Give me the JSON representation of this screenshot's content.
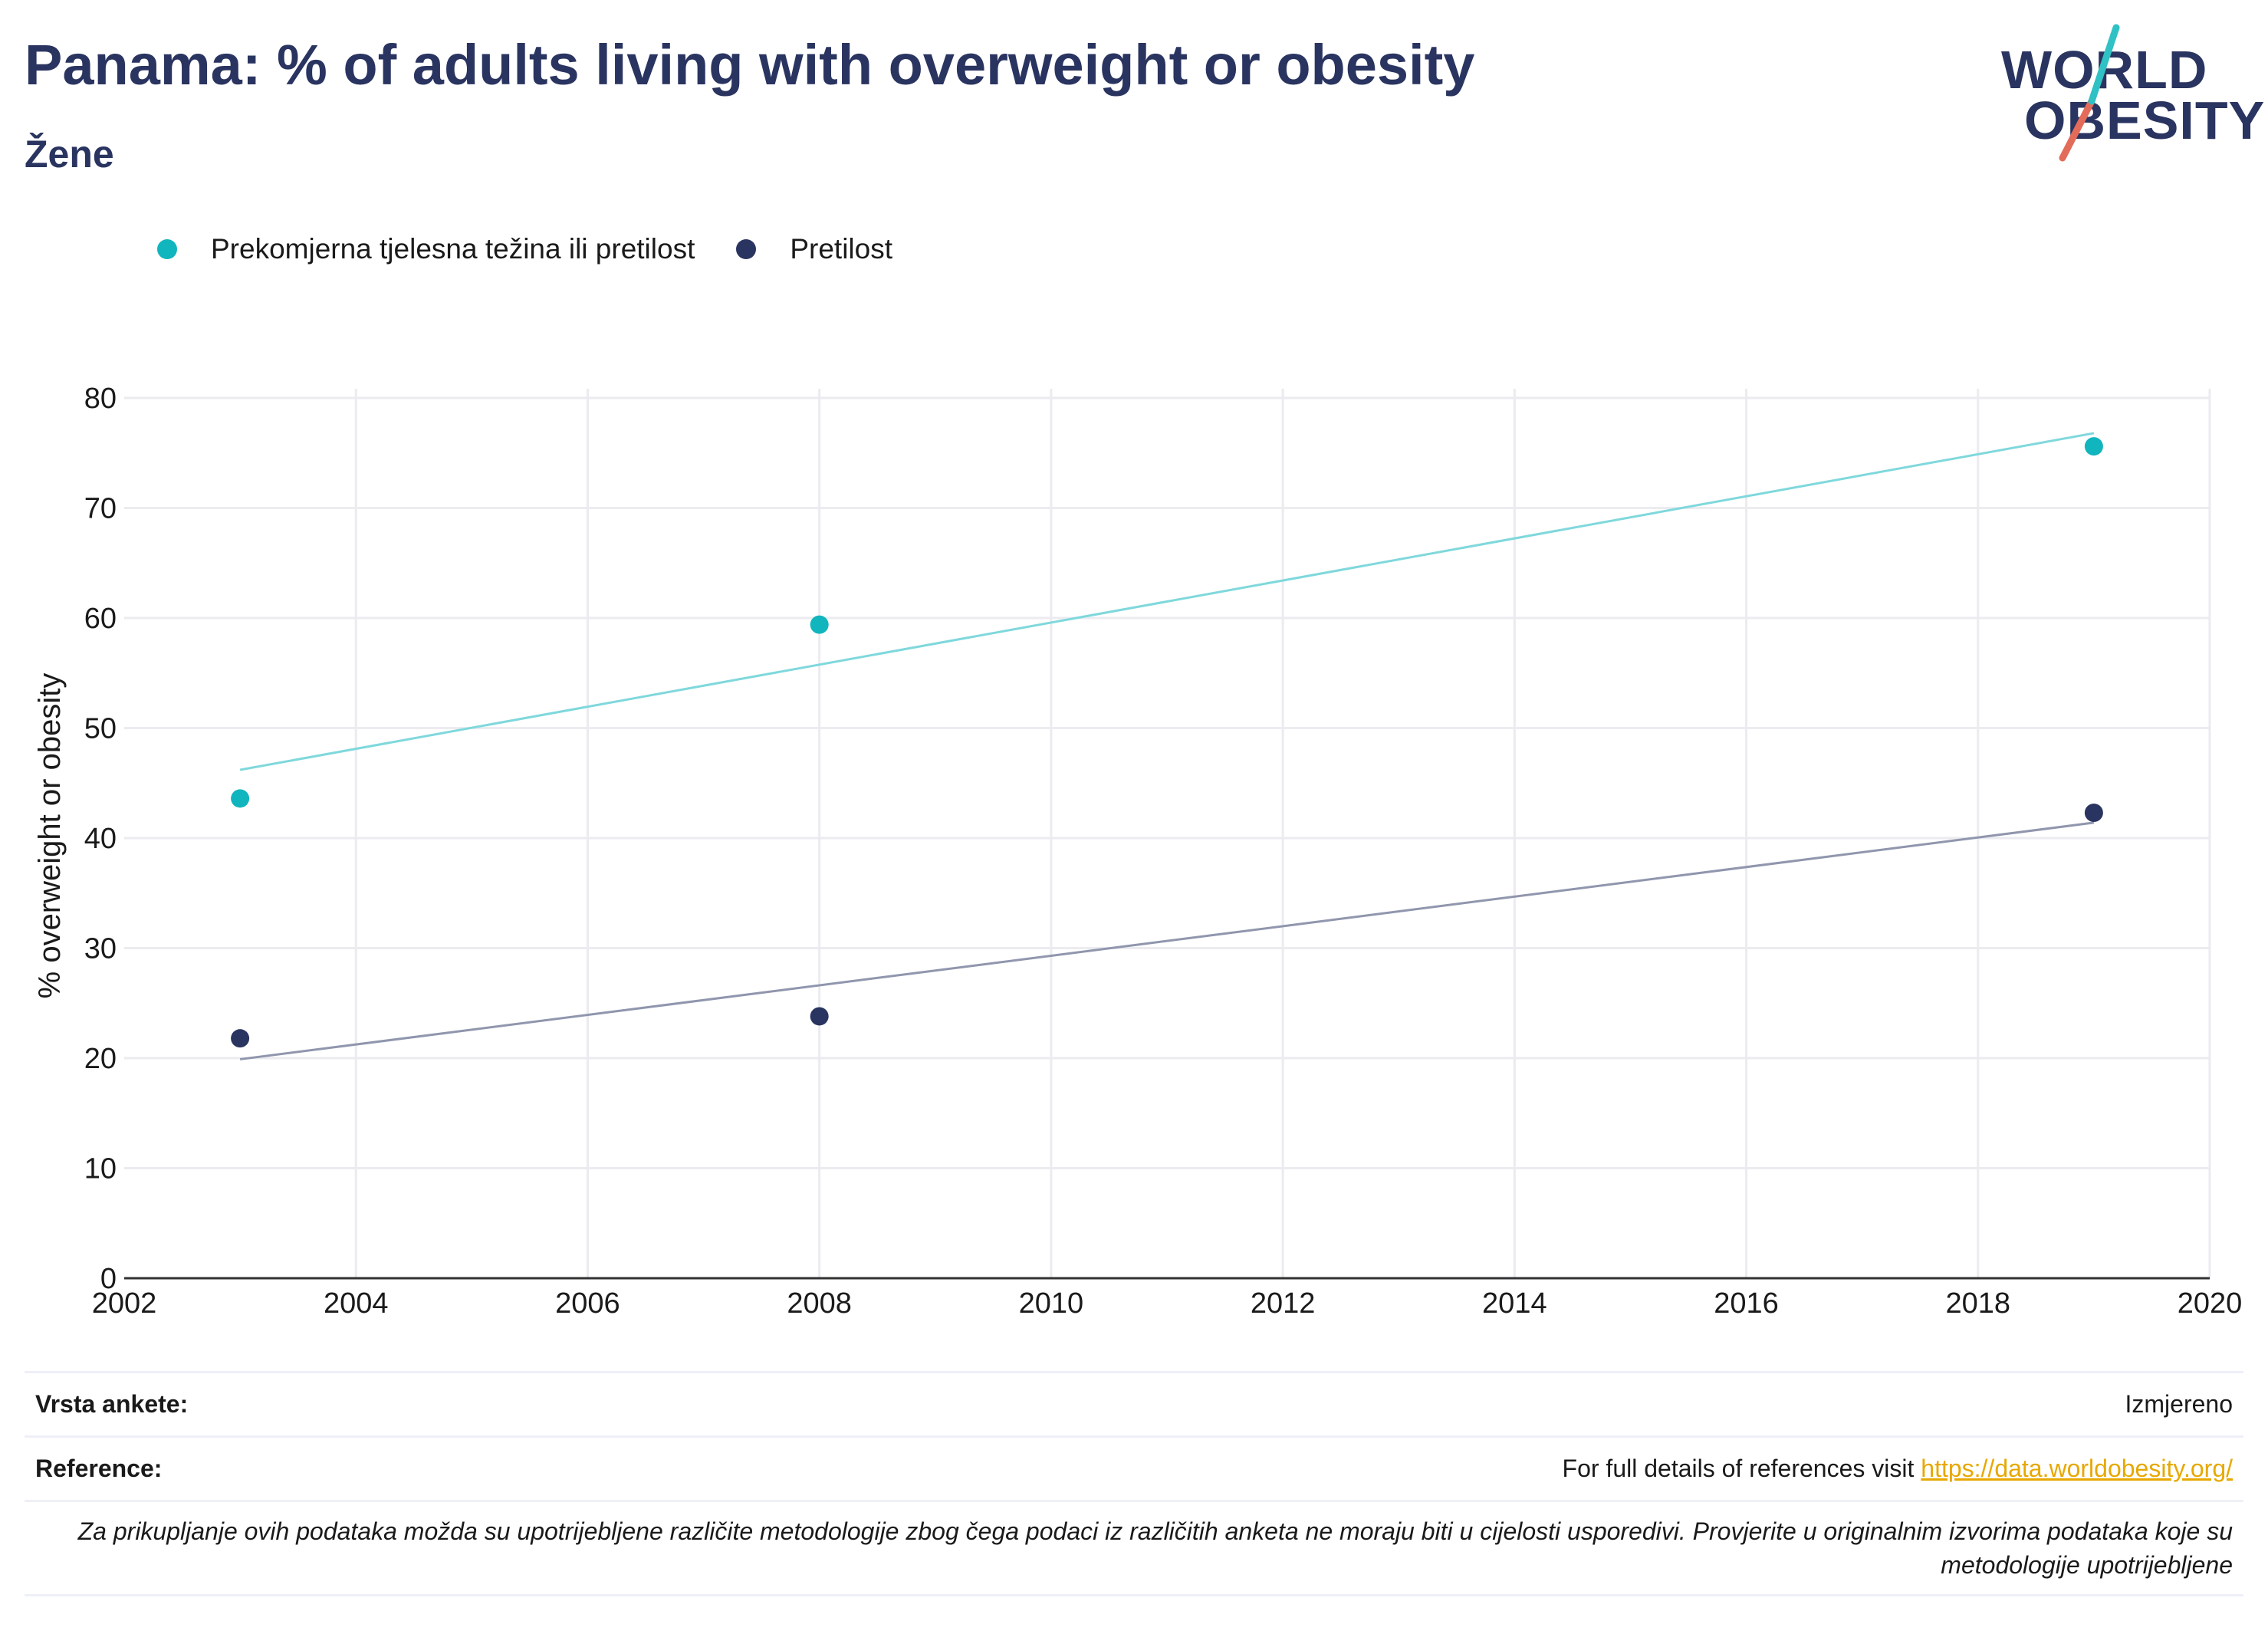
{
  "title": "Panama: % of adults living with overweight or obesity",
  "subtitle": "Žene",
  "logo": {
    "line1": "WORLD",
    "line2": "OBESITY"
  },
  "legend": [
    {
      "label": "Prekomjerna tjelesna težina ili pretilost",
      "color": "#11b5bd"
    },
    {
      "label": "Pretilost",
      "color": "#2a3460"
    }
  ],
  "chart_data": {
    "type": "scatter",
    "title": "Panama: % of adults living with overweight or obesity",
    "subtitle": "Žene",
    "xlabel": "",
    "ylabel": "% overweight or obesity",
    "xlim": [
      2002,
      2020
    ],
    "ylim": [
      0,
      80
    ],
    "xticks": [
      2002,
      2004,
      2006,
      2008,
      2010,
      2012,
      2014,
      2016,
      2018,
      2020
    ],
    "yticks": [
      0,
      10,
      20,
      30,
      40,
      50,
      60,
      70,
      80
    ],
    "grid": true,
    "legend_position": "top-left",
    "series": [
      {
        "name": "Prekomjerna tjelesna težina ili pretilost",
        "color": "#11b5bd",
        "trend_color": "#7fd8dc",
        "x": [
          2003,
          2008,
          2019
        ],
        "y": [
          43.6,
          59.4,
          75.6
        ],
        "trend": {
          "x": [
            2003,
            2019
          ],
          "y": [
            46.2,
            76.8
          ]
        }
      },
      {
        "name": "Pretilost",
        "color": "#2a3460",
        "trend_color": "#9096ad",
        "x": [
          2003,
          2008,
          2019
        ],
        "y": [
          21.8,
          23.8,
          42.3
        ],
        "trend": {
          "x": [
            2003,
            2019
          ],
          "y": [
            19.9,
            41.4
          ]
        }
      }
    ]
  },
  "footer": {
    "survey_label": "Vrsta ankete:",
    "survey_value": "Izmjereno",
    "ref_label": "Reference:",
    "ref_text": "For full details of references visit ",
    "ref_link": "https://data.worldobesity.org/",
    "note": "Za prikupljanje ovih podataka možda su upotrijebljene različite metodologije zbog čega podaci iz različitih anketa ne moraju biti u cijelosti usporedivi. Provjerite u originalnim izvorima podataka koje su metodologije upotrijebljene"
  }
}
